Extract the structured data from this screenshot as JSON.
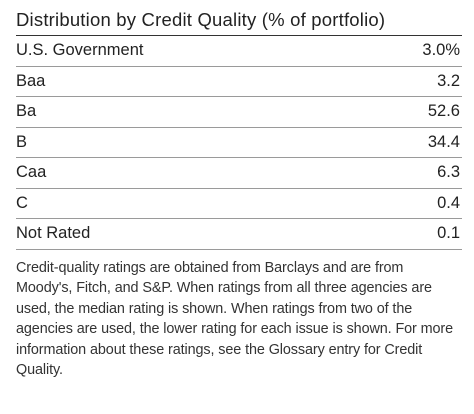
{
  "title": "Distribution by Credit Quality (% of portfolio)",
  "rows": [
    {
      "label": "U.S. Government",
      "value": "3.0%"
    },
    {
      "label": "Baa",
      "value": "3.2"
    },
    {
      "label": "Ba",
      "value": "52.6"
    },
    {
      "label": "B",
      "value": "34.4"
    },
    {
      "label": "Caa",
      "value": "6.3"
    },
    {
      "label": "C",
      "value": "0.4"
    },
    {
      "label": "Not Rated",
      "value": "0.1"
    }
  ],
  "footnote": "Credit-quality ratings are obtained from Barclays and are from Moody's, Fitch, and S&P. When ratings from all three agencies are used, the median rating is shown. When ratings from two of the agencies are used, the lower rating for each issue is shown. For more information about these ratings, see the Glossary entry for Credit Quality."
}
